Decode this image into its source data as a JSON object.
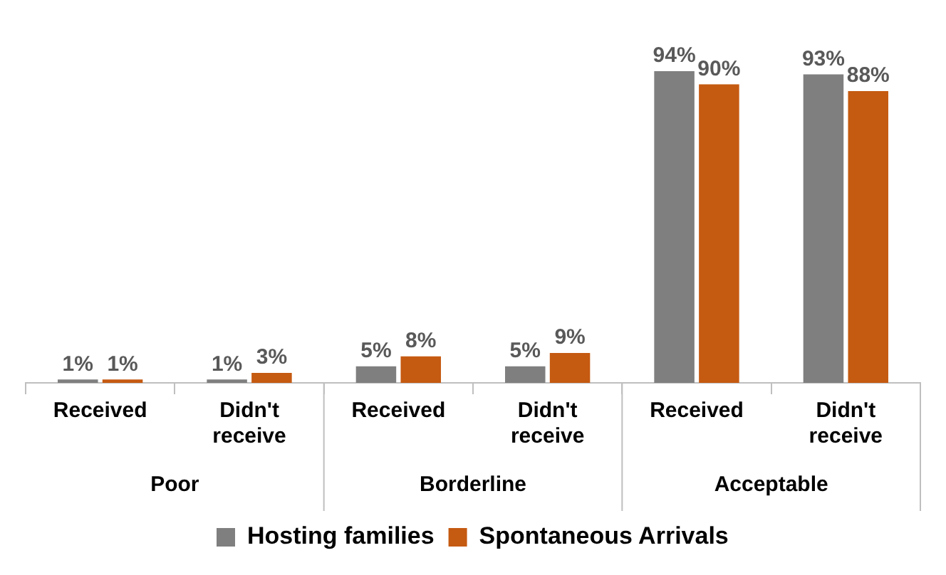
{
  "chart_data": {
    "type": "bar",
    "categories": [
      "Received",
      "Didn't receive",
      "Received",
      "Didn't receive",
      "Received",
      "Didn't receive"
    ],
    "series": [
      {
        "name": "Hosting families",
        "color": "#7f7f7f",
        "values": [
          1,
          1,
          5,
          5,
          94,
          93
        ],
        "value_labels": [
          "1%",
          "1%",
          "5%",
          "5%",
          "94%",
          "93%"
        ]
      },
      {
        "name": "Spontaneous Arrivals",
        "color": "#c55a11",
        "values": [
          1,
          3,
          8,
          9,
          90,
          88
        ],
        "value_labels": [
          "1%",
          "3%",
          "8%",
          "9%",
          "90%",
          "88%"
        ]
      }
    ],
    "annotations": [
      "Poor",
      "Borderline",
      "Acceptable"
    ],
    "tick_labels": "x",
    "legend": "bottom"
  }
}
